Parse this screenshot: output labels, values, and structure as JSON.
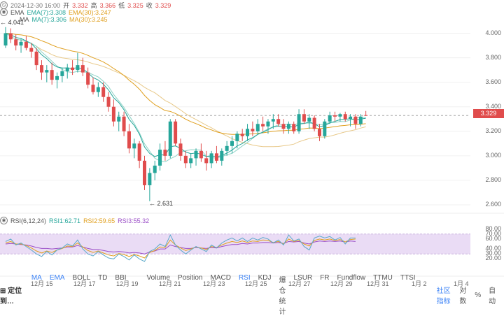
{
  "header": {
    "date": "2024-12-30 16:00",
    "open_label": "开",
    "open": "3.332",
    "high_label": "高",
    "high": "3.366",
    "low_label": "低",
    "low": "3.325",
    "close_label": "收",
    "close": "3.329",
    "ema_label": "EMA",
    "ema7": "EMA(7):3.308",
    "ema30": "EMA(30):3.247",
    "ma_label": "MA",
    "ma7": "MA(7):3.306",
    "ma30": "MA(30):3.245"
  },
  "rsi_header": {
    "label": "RSI(6,12,24)",
    "rsi1": "RSI1:62.71",
    "rsi2": "RSI2:59.65",
    "rsi3": "RSI3:55.32"
  },
  "price_axis": [
    "4.000",
    "3.800",
    "3.600",
    "3.400",
    "3.200",
    "3.000",
    "2.800",
    "2.600"
  ],
  "rsi_axis": [
    "80.00",
    "70.00",
    "60.00",
    "40.00",
    "30.00",
    "20.00"
  ],
  "x_axis": [
    "12月 15",
    "12月 17",
    "12月 19",
    "12月 21",
    "12月 23",
    "12月 25",
    "12月 27",
    "12月 29",
    "12月 31",
    "1月 2",
    "1月 4"
  ],
  "current_price": "3.329",
  "annotations": {
    "high": "4.041",
    "low": "2.631"
  },
  "toolbar": {
    "locate": "定位到…",
    "items": [
      "MA",
      "EMA",
      "BOLL",
      "TD",
      "BBI",
      "Volume",
      "Position",
      "MACD",
      "RSI",
      "KDJ",
      "爆仓统计",
      "LSUR",
      "FR",
      "Fundflow",
      "TTMU",
      "TTSI"
    ],
    "right": [
      "社区指标",
      "对数",
      "%",
      "自动"
    ]
  },
  "colors": {
    "up": "#e04c4c",
    "down": "#26a69a",
    "ema7": "#26a69a",
    "ema30": "#e0a020",
    "ma30": "#d8b060",
    "rsi1": "#5aa9c9",
    "rsi2": "#e0a020",
    "rsi3": "#9b4fc7",
    "rsi_band": "#eadcf5"
  },
  "chart_data": {
    "type": "candlestick",
    "price_range": [
      2.56,
      4.1
    ],
    "candles": [
      {
        "o": 3.9,
        "h": 4.05,
        "l": 3.88,
        "c": 4.0
      },
      {
        "o": 4.0,
        "h": 4.04,
        "l": 3.92,
        "c": 3.95
      },
      {
        "o": 3.95,
        "h": 3.99,
        "l": 3.86,
        "c": 3.9
      },
      {
        "o": 3.9,
        "h": 3.96,
        "l": 3.84,
        "c": 3.93
      },
      {
        "o": 3.93,
        "h": 3.98,
        "l": 3.86,
        "c": 3.88
      },
      {
        "o": 3.88,
        "h": 3.92,
        "l": 3.8,
        "c": 3.85
      },
      {
        "o": 3.85,
        "h": 3.88,
        "l": 3.7,
        "c": 3.74
      },
      {
        "o": 3.74,
        "h": 3.78,
        "l": 3.62,
        "c": 3.68
      },
      {
        "o": 3.68,
        "h": 3.74,
        "l": 3.6,
        "c": 3.7
      },
      {
        "o": 3.7,
        "h": 3.76,
        "l": 3.58,
        "c": 3.62
      },
      {
        "o": 3.62,
        "h": 3.68,
        "l": 3.55,
        "c": 3.65
      },
      {
        "o": 3.65,
        "h": 3.72,
        "l": 3.6,
        "c": 3.69
      },
      {
        "o": 3.69,
        "h": 3.75,
        "l": 3.63,
        "c": 3.72
      },
      {
        "o": 3.72,
        "h": 3.78,
        "l": 3.66,
        "c": 3.7
      },
      {
        "o": 3.7,
        "h": 3.84,
        "l": 3.68,
        "c": 3.74
      },
      {
        "o": 3.74,
        "h": 3.8,
        "l": 3.65,
        "c": 3.68
      },
      {
        "o": 3.68,
        "h": 3.72,
        "l": 3.55,
        "c": 3.58
      },
      {
        "o": 3.58,
        "h": 3.64,
        "l": 3.5,
        "c": 3.52
      },
      {
        "o": 3.52,
        "h": 3.6,
        "l": 3.48,
        "c": 3.56
      },
      {
        "o": 3.56,
        "h": 3.6,
        "l": 3.44,
        "c": 3.48
      },
      {
        "o": 3.48,
        "h": 3.52,
        "l": 3.36,
        "c": 3.4
      },
      {
        "o": 3.4,
        "h": 3.46,
        "l": 3.24,
        "c": 3.28
      },
      {
        "o": 3.28,
        "h": 3.36,
        "l": 3.2,
        "c": 3.32
      },
      {
        "o": 3.32,
        "h": 3.36,
        "l": 3.16,
        "c": 3.2
      },
      {
        "o": 3.2,
        "h": 3.26,
        "l": 3.02,
        "c": 3.06
      },
      {
        "o": 3.06,
        "h": 3.14,
        "l": 2.98,
        "c": 3.1
      },
      {
        "o": 3.1,
        "h": 3.12,
        "l": 2.9,
        "c": 2.96
      },
      {
        "o": 2.96,
        "h": 3.0,
        "l": 2.72,
        "c": 2.76
      },
      {
        "o": 2.76,
        "h": 2.9,
        "l": 2.63,
        "c": 2.86
      },
      {
        "o": 2.86,
        "h": 2.96,
        "l": 2.8,
        "c": 2.92
      },
      {
        "o": 2.92,
        "h": 3.1,
        "l": 2.88,
        "c": 3.05
      },
      {
        "o": 3.05,
        "h": 3.12,
        "l": 2.96,
        "c": 3.0
      },
      {
        "o": 3.0,
        "h": 3.3,
        "l": 2.98,
        "c": 3.28
      },
      {
        "o": 3.28,
        "h": 3.3,
        "l": 3.08,
        "c": 3.1
      },
      {
        "o": 3.1,
        "h": 3.14,
        "l": 2.96,
        "c": 3.0
      },
      {
        "o": 3.0,
        "h": 3.04,
        "l": 2.9,
        "c": 2.94
      },
      {
        "o": 2.94,
        "h": 3.02,
        "l": 2.9,
        "c": 2.98
      },
      {
        "o": 2.98,
        "h": 3.06,
        "l": 2.92,
        "c": 3.04
      },
      {
        "o": 3.04,
        "h": 3.1,
        "l": 2.95,
        "c": 2.98
      },
      {
        "o": 2.98,
        "h": 3.04,
        "l": 2.88,
        "c": 2.94
      },
      {
        "o": 2.94,
        "h": 3.04,
        "l": 2.9,
        "c": 3.02
      },
      {
        "o": 3.02,
        "h": 3.08,
        "l": 2.94,
        "c": 2.96
      },
      {
        "o": 2.96,
        "h": 3.06,
        "l": 2.92,
        "c": 3.04
      },
      {
        "o": 3.04,
        "h": 3.12,
        "l": 3.0,
        "c": 3.08
      },
      {
        "o": 3.08,
        "h": 3.16,
        "l": 3.02,
        "c": 3.12
      },
      {
        "o": 3.12,
        "h": 3.2,
        "l": 3.06,
        "c": 3.18
      },
      {
        "o": 3.18,
        "h": 3.22,
        "l": 3.12,
        "c": 3.16
      },
      {
        "o": 3.16,
        "h": 3.26,
        "l": 3.12,
        "c": 3.22
      },
      {
        "o": 3.22,
        "h": 3.28,
        "l": 3.16,
        "c": 3.2
      },
      {
        "o": 3.2,
        "h": 3.3,
        "l": 3.18,
        "c": 3.26
      },
      {
        "o": 3.26,
        "h": 3.32,
        "l": 3.2,
        "c": 3.24
      },
      {
        "o": 3.24,
        "h": 3.3,
        "l": 3.18,
        "c": 3.28
      },
      {
        "o": 3.28,
        "h": 3.34,
        "l": 3.22,
        "c": 3.3
      },
      {
        "o": 3.3,
        "h": 3.34,
        "l": 3.24,
        "c": 3.26
      },
      {
        "o": 3.26,
        "h": 3.3,
        "l": 3.18,
        "c": 3.22
      },
      {
        "o": 3.22,
        "h": 3.28,
        "l": 3.18,
        "c": 3.26
      },
      {
        "o": 3.26,
        "h": 3.28,
        "l": 3.18,
        "c": 3.2
      },
      {
        "o": 3.2,
        "h": 3.38,
        "l": 3.18,
        "c": 3.34
      },
      {
        "o": 3.34,
        "h": 3.38,
        "l": 3.26,
        "c": 3.28
      },
      {
        "o": 3.28,
        "h": 3.34,
        "l": 3.22,
        "c": 3.31
      },
      {
        "o": 3.31,
        "h": 3.33,
        "l": 3.2,
        "c": 3.22
      },
      {
        "o": 3.22,
        "h": 3.26,
        "l": 3.12,
        "c": 3.16
      },
      {
        "o": 3.16,
        "h": 3.3,
        "l": 3.14,
        "c": 3.28
      },
      {
        "o": 3.28,
        "h": 3.36,
        "l": 3.26,
        "c": 3.33
      },
      {
        "o": 3.33,
        "h": 3.36,
        "l": 3.28,
        "c": 3.32
      },
      {
        "o": 3.32,
        "h": 3.35,
        "l": 3.28,
        "c": 3.34
      },
      {
        "o": 3.34,
        "h": 3.36,
        "l": 3.28,
        "c": 3.3
      },
      {
        "o": 3.3,
        "h": 3.34,
        "l": 3.24,
        "c": 3.32
      },
      {
        "o": 3.32,
        "h": 3.34,
        "l": 3.22,
        "c": 3.26
      },
      {
        "o": 3.26,
        "h": 3.34,
        "l": 3.24,
        "c": 3.32
      },
      {
        "o": 3.332,
        "h": 3.366,
        "l": 3.325,
        "c": 3.329
      }
    ],
    "rsi1": [
      55,
      60,
      48,
      52,
      45,
      38,
      30,
      25,
      35,
      28,
      38,
      42,
      50,
      46,
      58,
      40,
      30,
      26,
      35,
      28,
      22,
      20,
      30,
      25,
      18,
      28,
      20,
      15,
      35,
      40,
      50,
      45,
      68,
      48,
      38,
      30,
      38,
      45,
      40,
      35,
      48,
      42,
      52,
      58,
      62,
      56,
      62,
      55,
      62,
      58,
      63,
      60,
      52,
      58,
      48,
      68,
      56,
      60,
      45,
      38,
      62,
      66,
      62,
      65,
      58,
      63,
      50,
      62,
      62
    ],
    "rsi2": [
      52,
      55,
      50,
      50,
      47,
      42,
      36,
      32,
      36,
      33,
      38,
      41,
      46,
      45,
      52,
      44,
      37,
      33,
      36,
      32,
      28,
      26,
      31,
      29,
      25,
      29,
      26,
      22,
      33,
      37,
      44,
      43,
      58,
      48,
      42,
      37,
      40,
      44,
      42,
      39,
      45,
      43,
      48,
      52,
      55,
      53,
      56,
      53,
      56,
      55,
      58,
      57,
      53,
      55,
      50,
      60,
      55,
      57,
      50,
      46,
      57,
      60,
      58,
      60,
      57,
      59,
      54,
      59,
      60
    ],
    "rsi3": [
      50,
      51,
      50,
      49,
      48,
      46,
      43,
      41,
      41,
      40,
      41,
      42,
      44,
      44,
      47,
      44,
      41,
      39,
      39,
      37,
      35,
      34,
      35,
      34,
      32,
      33,
      32,
      30,
      34,
      36,
      40,
      40,
      48,
      45,
      43,
      41,
      41,
      43,
      42,
      41,
      43,
      42,
      45,
      47,
      49,
      49,
      51,
      50,
      52,
      52,
      53,
      53,
      52,
      53,
      51,
      55,
      54,
      55,
      52,
      50,
      54,
      56,
      55,
      56,
      55,
      56,
      54,
      56,
      55
    ],
    "rsi_range": [
      15,
      85
    ]
  }
}
